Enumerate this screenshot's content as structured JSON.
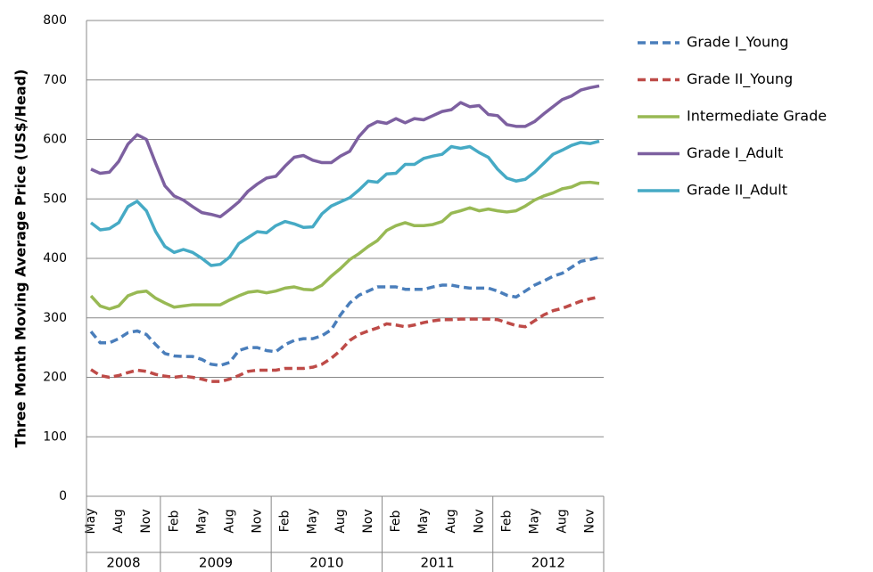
{
  "chart_data": {
    "type": "line",
    "y_axis_label": "Three Month Moving Average Price (US$/Head)",
    "categories": [
      "May",
      null,
      null,
      "Aug",
      null,
      null,
      "Nov",
      null,
      null,
      "Feb",
      null,
      null,
      "May",
      null,
      null,
      "Aug",
      null,
      null,
      "Nov",
      null,
      null,
      "Feb",
      null,
      null,
      "May",
      null,
      null,
      "Aug",
      null,
      null,
      "Nov",
      null,
      null,
      "Feb",
      null,
      null,
      "May",
      null,
      null,
      "Aug",
      null,
      null,
      "Nov",
      null,
      null,
      "Feb",
      null,
      null,
      "May",
      null,
      null,
      "Aug",
      null,
      null,
      "Nov",
      null
    ],
    "year_groups": [
      {
        "label": "2008",
        "months": 8
      },
      {
        "label": "2009",
        "months": 12
      },
      {
        "label": "2010",
        "months": 12
      },
      {
        "label": "2011",
        "months": 12
      },
      {
        "label": "2012",
        "months": 12
      }
    ],
    "ylim": [
      0,
      800
    ],
    "yticks": [
      0,
      100,
      200,
      300,
      400,
      500,
      600,
      700,
      800
    ],
    "grid": true,
    "series": [
      {
        "name": "Grade I_Young",
        "color": "#4a7ebb",
        "dashed": true,
        "values": [
          277,
          258,
          258,
          265,
          275,
          278,
          272,
          255,
          240,
          236,
          235,
          235,
          230,
          222,
          220,
          225,
          245,
          250,
          250,
          245,
          243,
          255,
          262,
          265,
          265,
          270,
          280,
          305,
          325,
          338,
          345,
          352,
          352,
          352,
          348,
          348,
          348,
          352,
          355,
          355,
          352,
          350,
          350,
          350,
          345,
          338,
          335,
          345,
          355,
          362,
          370,
          375,
          385,
          395,
          398,
          402
        ]
      },
      {
        "name": "Grade II_Young",
        "color": "#be4b48",
        "dashed": true,
        "values": [
          213,
          203,
          200,
          203,
          208,
          212,
          210,
          205,
          202,
          200,
          202,
          200,
          197,
          193,
          193,
          197,
          203,
          210,
          212,
          212,
          212,
          215,
          215,
          215,
          217,
          222,
          232,
          245,
          262,
          272,
          278,
          283,
          290,
          288,
          285,
          288,
          292,
          295,
          297,
          297,
          298,
          298,
          298,
          298,
          297,
          292,
          287,
          285,
          295,
          305,
          312,
          316,
          322,
          328,
          332,
          335
        ]
      },
      {
        "name": "Intermediate Grade",
        "color": "#98b954",
        "dashed": false,
        "values": [
          337,
          320,
          315,
          320,
          337,
          343,
          345,
          333,
          325,
          318,
          320,
          322,
          322,
          322,
          322,
          330,
          337,
          343,
          345,
          342,
          345,
          350,
          352,
          348,
          347,
          355,
          370,
          383,
          398,
          408,
          420,
          430,
          447,
          455,
          460,
          455,
          455,
          457,
          462,
          476,
          480,
          485,
          480,
          483,
          480,
          478,
          480,
          488,
          498,
          505,
          510,
          517,
          520,
          527,
          528,
          526
        ]
      },
      {
        "name": "Grade I_Adult",
        "color": "#7d60a0",
        "dashed": false,
        "values": [
          550,
          543,
          545,
          563,
          592,
          608,
          600,
          560,
          522,
          505,
          498,
          487,
          477,
          474,
          470,
          482,
          495,
          513,
          525,
          535,
          538,
          555,
          570,
          573,
          565,
          561,
          561,
          572,
          580,
          605,
          622,
          630,
          627,
          635,
          628,
          635,
          633,
          640,
          647,
          650,
          662,
          655,
          657,
          642,
          640,
          625,
          622,
          622,
          630,
          643,
          655,
          667,
          673,
          683,
          687,
          690
        ]
      },
      {
        "name": "Grade II_Adult",
        "color": "#46aac5",
        "dashed": false,
        "values": [
          460,
          448,
          450,
          460,
          487,
          496,
          480,
          445,
          420,
          410,
          415,
          410,
          400,
          388,
          390,
          402,
          425,
          435,
          445,
          443,
          455,
          462,
          458,
          452,
          453,
          475,
          488,
          495,
          502,
          515,
          530,
          528,
          542,
          543,
          558,
          558,
          568,
          572,
          575,
          588,
          585,
          588,
          578,
          570,
          550,
          535,
          530,
          533,
          545,
          560,
          575,
          582,
          590,
          595,
          593,
          597
        ]
      }
    ]
  }
}
